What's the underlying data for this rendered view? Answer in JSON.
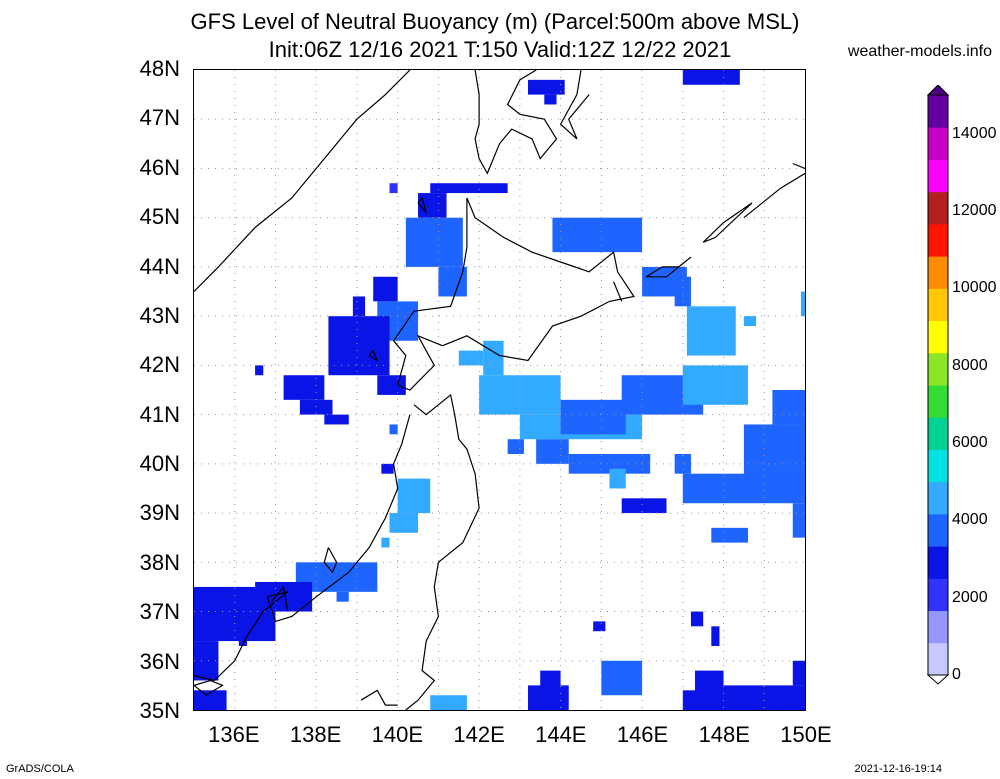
{
  "title_line1": "GFS Level of Neutral Buoyancy (m) (Parcel:500m above MSL)",
  "title_line2": "Init:06Z 12/16 2021 T:150 Valid:12Z 12/22 2021",
  "credit": "weather-models.info",
  "footer_left": "GrADS/COLA",
  "footer_right": "2021-12-16-19:14",
  "map": {
    "lon_range": [
      135,
      150
    ],
    "lat_range": [
      35,
      48
    ],
    "lat_labels": [
      "48N",
      "47N",
      "46N",
      "45N",
      "44N",
      "43N",
      "42N",
      "41N",
      "40N",
      "39N",
      "38N",
      "37N",
      "36N",
      "35N"
    ],
    "lon_labels": [
      "136E",
      "138E",
      "140E",
      "142E",
      "144E",
      "146E",
      "148E",
      "150E"
    ],
    "lon_ticks": [
      136,
      138,
      140,
      142,
      144,
      146,
      148,
      150
    ]
  },
  "colorbar": {
    "labels": [
      "14000",
      "12000",
      "10000",
      "8000",
      "6000",
      "4000",
      "2000",
      "0"
    ],
    "values": [
      14000,
      12000,
      10000,
      8000,
      6000,
      4000,
      2000,
      0
    ],
    "colors": [
      "#c8c8ff",
      "#9696ff",
      "#3232ff",
      "#0a14e6",
      "#1e64ff",
      "#32aaff",
      "#00e1e1",
      "#00d296",
      "#32dc32",
      "#8ce628",
      "#ffff00",
      "#ffc800",
      "#ff8c00",
      "#ff1400",
      "#b41e1e",
      "#ff00ff",
      "#c800c8",
      "#6400a0"
    ],
    "top_color": "#4b0082",
    "bottom_color": "#ffffff"
  },
  "cells": [
    {
      "lon": 143.2,
      "lat": 47.8,
      "lon2": 144.1,
      "lat2": 47.5,
      "c": "#0a14e6"
    },
    {
      "lon": 143.6,
      "lat": 47.5,
      "lon2": 143.9,
      "lat2": 47.3,
      "c": "#0a14e6"
    },
    {
      "lon": 147.0,
      "lat": 48.0,
      "lon2": 148.4,
      "lat2": 47.7,
      "c": "#0a14e6"
    },
    {
      "lon": 140.8,
      "lat": 45.7,
      "lon2": 142.7,
      "lat2": 45.5,
      "c": "#0a14e6"
    },
    {
      "lon": 139.8,
      "lat": 45.7,
      "lon2": 140.0,
      "lat2": 45.5,
      "c": "#3232ff"
    },
    {
      "lon": 140.2,
      "lat": 45.0,
      "lon2": 141.6,
      "lat2": 44.0,
      "c": "#1e64ff"
    },
    {
      "lon": 141.0,
      "lat": 44.0,
      "lon2": 141.7,
      "lat2": 43.4,
      "c": "#1e64ff"
    },
    {
      "lon": 140.5,
      "lat": 45.5,
      "lon2": 141.2,
      "lat2": 45.0,
      "c": "#0a14e6"
    },
    {
      "lon": 143.8,
      "lat": 45.0,
      "lon2": 146.0,
      "lat2": 44.3,
      "c": "#1e64ff"
    },
    {
      "lon": 146.0,
      "lat": 44.0,
      "lon2": 147.1,
      "lat2": 43.4,
      "c": "#1e64ff"
    },
    {
      "lon": 147.1,
      "lat": 43.2,
      "lon2": 148.3,
      "lat2": 42.2,
      "c": "#32aaff"
    },
    {
      "lon": 146.8,
      "lat": 43.8,
      "lon2": 147.2,
      "lat2": 43.2,
      "c": "#1e64ff"
    },
    {
      "lon": 149.9,
      "lat": 43.5,
      "lon2": 150.0,
      "lat2": 43.0,
      "c": "#32aaff"
    },
    {
      "lon": 148.5,
      "lat": 43.0,
      "lon2": 148.8,
      "lat2": 42.8,
      "c": "#32aaff"
    },
    {
      "lon": 139.4,
      "lat": 43.8,
      "lon2": 140.0,
      "lat2": 43.3,
      "c": "#0a14e6"
    },
    {
      "lon": 139.5,
      "lat": 43.3,
      "lon2": 140.5,
      "lat2": 42.5,
      "c": "#1e64ff"
    },
    {
      "lon": 138.3,
      "lat": 43.0,
      "lon2": 139.8,
      "lat2": 41.8,
      "c": "#0a14e6"
    },
    {
      "lon": 138.9,
      "lat": 43.4,
      "lon2": 139.2,
      "lat2": 43.0,
      "c": "#0a14e6"
    },
    {
      "lon": 139.5,
      "lat": 41.8,
      "lon2": 140.2,
      "lat2": 41.4,
      "c": "#0a14e6"
    },
    {
      "lon": 137.2,
      "lat": 41.8,
      "lon2": 138.2,
      "lat2": 41.3,
      "c": "#0a14e6"
    },
    {
      "lon": 137.6,
      "lat": 41.3,
      "lon2": 138.4,
      "lat2": 41.0,
      "c": "#0a14e6"
    },
    {
      "lon": 138.2,
      "lat": 41.0,
      "lon2": 138.8,
      "lat2": 40.8,
      "c": "#0a14e6"
    },
    {
      "lon": 136.5,
      "lat": 42.0,
      "lon2": 136.7,
      "lat2": 41.8,
      "c": "#0a14e6"
    },
    {
      "lon": 139.8,
      "lat": 40.8,
      "lon2": 140.0,
      "lat2": 40.6,
      "c": "#1e64ff"
    },
    {
      "lon": 139.6,
      "lat": 40.0,
      "lon2": 139.9,
      "lat2": 39.8,
      "c": "#0a14e6"
    },
    {
      "lon": 140.0,
      "lat": 39.7,
      "lon2": 140.8,
      "lat2": 39.0,
      "c": "#32aaff"
    },
    {
      "lon": 139.8,
      "lat": 39.0,
      "lon2": 140.5,
      "lat2": 38.6,
      "c": "#32aaff"
    },
    {
      "lon": 139.6,
      "lat": 38.5,
      "lon2": 139.8,
      "lat2": 38.3,
      "c": "#32aaff"
    },
    {
      "lon": 141.5,
      "lat": 42.3,
      "lon2": 142.1,
      "lat2": 42.0,
      "c": "#32aaff"
    },
    {
      "lon": 142.1,
      "lat": 42.5,
      "lon2": 142.6,
      "lat2": 41.8,
      "c": "#32aaff"
    },
    {
      "lon": 142.0,
      "lat": 41.8,
      "lon2": 144.0,
      "lat2": 41.0,
      "c": "#32aaff"
    },
    {
      "lon": 143.0,
      "lat": 41.0,
      "lon2": 146.0,
      "lat2": 40.5,
      "c": "#32aaff"
    },
    {
      "lon": 144.0,
      "lat": 41.3,
      "lon2": 145.6,
      "lat2": 40.6,
      "c": "#1e64ff"
    },
    {
      "lon": 145.5,
      "lat": 41.8,
      "lon2": 147.5,
      "lat2": 41.0,
      "c": "#1e64ff"
    },
    {
      "lon": 147.0,
      "lat": 42.0,
      "lon2": 148.6,
      "lat2": 41.2,
      "c": "#32aaff"
    },
    {
      "lon": 143.4,
      "lat": 40.5,
      "lon2": 144.2,
      "lat2": 40.0,
      "c": "#1e64ff"
    },
    {
      "lon": 144.2,
      "lat": 40.2,
      "lon2": 146.2,
      "lat2": 39.8,
      "c": "#1e64ff"
    },
    {
      "lon": 142.7,
      "lat": 40.5,
      "lon2": 143.1,
      "lat2": 40.2,
      "c": "#1e64ff"
    },
    {
      "lon": 145.2,
      "lat": 39.9,
      "lon2": 145.6,
      "lat2": 39.5,
      "c": "#32aaff"
    },
    {
      "lon": 146.8,
      "lat": 40.2,
      "lon2": 147.2,
      "lat2": 39.8,
      "c": "#1e64ff"
    },
    {
      "lon": 148.5,
      "lat": 40.8,
      "lon2": 150.0,
      "lat2": 39.5,
      "c": "#1e64ff"
    },
    {
      "lon": 149.2,
      "lat": 41.5,
      "lon2": 150.0,
      "lat2": 40.8,
      "c": "#1e64ff"
    },
    {
      "lon": 147.0,
      "lat": 39.8,
      "lon2": 150.0,
      "lat2": 39.2,
      "c": "#1e64ff"
    },
    {
      "lon": 149.7,
      "lat": 39.2,
      "lon2": 150.0,
      "lat2": 38.5,
      "c": "#1e64ff"
    },
    {
      "lon": 145.5,
      "lat": 39.3,
      "lon2": 146.6,
      "lat2": 39.0,
      "c": "#0a14e6"
    },
    {
      "lon": 147.7,
      "lat": 38.7,
      "lon2": 148.6,
      "lat2": 38.4,
      "c": "#1e64ff"
    },
    {
      "lon": 137.5,
      "lat": 38.0,
      "lon2": 139.5,
      "lat2": 37.4,
      "c": "#1e64ff"
    },
    {
      "lon": 135.0,
      "lat": 37.5,
      "lon2": 137.0,
      "lat2": 36.4,
      "c": "#0a14e6"
    },
    {
      "lon": 136.5,
      "lat": 37.6,
      "lon2": 137.9,
      "lat2": 37.0,
      "c": "#0a14e6"
    },
    {
      "lon": 138.5,
      "lat": 37.4,
      "lon2": 138.8,
      "lat2": 37.2,
      "c": "#1e64ff"
    },
    {
      "lon": 135.0,
      "lat": 36.4,
      "lon2": 135.6,
      "lat2": 35.6,
      "c": "#0a14e6"
    },
    {
      "lon": 136.1,
      "lat": 36.6,
      "lon2": 136.3,
      "lat2": 36.3,
      "c": "#0a14e6"
    },
    {
      "lon": 135.0,
      "lat": 35.4,
      "lon2": 135.8,
      "lat2": 35.0,
      "c": "#0a14e6"
    },
    {
      "lon": 147.2,
      "lat": 37.0,
      "lon2": 147.5,
      "lat2": 36.7,
      "c": "#0a14e6"
    },
    {
      "lon": 147.7,
      "lat": 36.7,
      "lon2": 147.9,
      "lat2": 36.3,
      "c": "#0a14e6"
    },
    {
      "lon": 144.8,
      "lat": 36.8,
      "lon2": 145.1,
      "lat2": 36.6,
      "c": "#0a14e6"
    },
    {
      "lon": 145.0,
      "lat": 36.0,
      "lon2": 146.0,
      "lat2": 35.3,
      "c": "#1e64ff"
    },
    {
      "lon": 143.5,
      "lat": 35.8,
      "lon2": 144.0,
      "lat2": 35.3,
      "c": "#0a14e6"
    },
    {
      "lon": 143.2,
      "lat": 35.5,
      "lon2": 144.2,
      "lat2": 35.0,
      "c": "#0a14e6"
    },
    {
      "lon": 147.3,
      "lat": 35.8,
      "lon2": 148.0,
      "lat2": 35.0,
      "c": "#0a14e6"
    },
    {
      "lon": 147.0,
      "lat": 35.4,
      "lon2": 147.5,
      "lat2": 35.0,
      "c": "#0a14e6"
    },
    {
      "lon": 148.0,
      "lat": 35.5,
      "lon2": 150.0,
      "lat2": 35.0,
      "c": "#0a14e6"
    },
    {
      "lon": 149.7,
      "lat": 36.0,
      "lon2": 150.0,
      "lat2": 35.5,
      "c": "#0a14e6"
    },
    {
      "lon": 140.8,
      "lat": 35.3,
      "lon2": 141.7,
      "lat2": 35.0,
      "c": "#32aaff"
    }
  ],
  "coast": [
    [
      [
        135.0,
        43.5
      ],
      [
        135.6,
        44.0
      ],
      [
        136.5,
        44.8
      ],
      [
        137.4,
        45.4
      ],
      [
        138.3,
        46.3
      ],
      [
        139.0,
        47.0
      ],
      [
        139.7,
        47.5
      ],
      [
        140.3,
        48.0
      ]
    ],
    [
      [
        141.9,
        48.0
      ],
      [
        142.0,
        47.5
      ],
      [
        142.0,
        46.9
      ],
      [
        141.9,
        46.6
      ],
      [
        142.0,
        46.2
      ],
      [
        142.2,
        45.9
      ],
      [
        142.5,
        46.5
      ],
      [
        142.8,
        46.8
      ],
      [
        143.3,
        46.6
      ],
      [
        143.5,
        46.2
      ],
      [
        143.9,
        46.6
      ],
      [
        143.6,
        47.0
      ],
      [
        143.0,
        47.1
      ],
      [
        142.7,
        47.3
      ],
      [
        143.0,
        47.8
      ],
      [
        143.4,
        48.0
      ]
    ],
    [
      [
        144.5,
        48.0
      ],
      [
        144.4,
        47.5
      ],
      [
        144.0,
        46.9
      ],
      [
        144.4,
        46.6
      ],
      [
        144.2,
        47.0
      ],
      [
        144.7,
        47.5
      ]
    ],
    [
      [
        141.7,
        45.4
      ],
      [
        141.9,
        45.0
      ],
      [
        142.6,
        44.6
      ],
      [
        143.3,
        44.3
      ],
      [
        144.0,
        44.1
      ],
      [
        144.7,
        43.9
      ],
      [
        145.3,
        44.3
      ],
      [
        145.4,
        43.9
      ],
      [
        145.8,
        43.4
      ],
      [
        145.2,
        43.3
      ],
      [
        144.5,
        43.0
      ],
      [
        143.8,
        42.8
      ],
      [
        143.2,
        42.1
      ],
      [
        142.5,
        42.2
      ],
      [
        141.7,
        42.6
      ],
      [
        141.1,
        42.4
      ],
      [
        140.5,
        42.6
      ],
      [
        140.9,
        42.0
      ],
      [
        140.3,
        41.5
      ],
      [
        140.0,
        41.6
      ],
      [
        140.2,
        42.2
      ],
      [
        139.9,
        42.5
      ],
      [
        140.4,
        43.1
      ],
      [
        141.3,
        43.2
      ],
      [
        141.6,
        43.9
      ],
      [
        141.7,
        44.4
      ],
      [
        141.7,
        45.4
      ]
    ],
    [
      [
        140.4,
        41.2
      ],
      [
        140.7,
        41.0
      ],
      [
        141.0,
        41.2
      ],
      [
        141.3,
        41.4
      ],
      [
        141.4,
        41.0
      ],
      [
        141.5,
        40.5
      ],
      [
        141.7,
        40.3
      ],
      [
        141.9,
        39.8
      ],
      [
        142.0,
        39.1
      ],
      [
        141.6,
        38.4
      ],
      [
        141.0,
        38.0
      ],
      [
        140.9,
        37.5
      ],
      [
        141.0,
        36.9
      ],
      [
        140.7,
        36.4
      ],
      [
        140.6,
        35.8
      ],
      [
        140.9,
        35.6
      ],
      [
        140.5,
        35.2
      ],
      [
        140.2,
        35.0
      ]
    ],
    [
      [
        140.3,
        41.0
      ],
      [
        140.1,
        40.4
      ],
      [
        139.9,
        40.0
      ],
      [
        140.0,
        39.5
      ],
      [
        139.7,
        38.9
      ],
      [
        139.3,
        38.3
      ],
      [
        138.8,
        37.8
      ],
      [
        138.0,
        37.3
      ],
      [
        137.4,
        36.9
      ],
      [
        137.0,
        36.8
      ],
      [
        136.8,
        37.3
      ],
      [
        137.3,
        37.4
      ],
      [
        136.7,
        37.0
      ],
      [
        136.3,
        36.5
      ],
      [
        136.0,
        36.0
      ],
      [
        135.5,
        35.6
      ],
      [
        135.0,
        35.7
      ]
    ],
    [
      [
        138.3,
        38.3
      ],
      [
        138.5,
        38.0
      ],
      [
        138.4,
        37.8
      ],
      [
        138.2,
        38.0
      ],
      [
        138.3,
        38.3
      ]
    ],
    [
      [
        137.3,
        37.0
      ],
      [
        137.2,
        37.5
      ],
      [
        136.9,
        37.2
      ]
    ],
    [
      [
        135.0,
        35.5
      ],
      [
        135.4,
        35.6
      ],
      [
        135.7,
        35.5
      ],
      [
        135.3,
        35.3
      ],
      [
        135.0,
        35.5
      ]
    ],
    [
      [
        139.1,
        35.2
      ],
      [
        139.5,
        35.4
      ],
      [
        139.7,
        35.1
      ],
      [
        140.0,
        35.1
      ]
    ],
    [
      [
        140.5,
        45.3
      ],
      [
        140.7,
        45.1
      ],
      [
        140.6,
        45.4
      ],
      [
        140.5,
        45.3
      ]
    ],
    [
      [
        139.3,
        42.2
      ],
      [
        139.5,
        42.1
      ],
      [
        139.4,
        42.3
      ],
      [
        139.3,
        42.2
      ]
    ],
    [
      [
        146.1,
        43.8
      ],
      [
        146.5,
        44.0
      ],
      [
        146.9,
        44.0
      ],
      [
        147.2,
        44.2
      ],
      [
        146.6,
        43.8
      ],
      [
        146.1,
        43.8
      ]
    ],
    [
      [
        147.5,
        44.5
      ],
      [
        148.0,
        44.9
      ],
      [
        148.7,
        45.3
      ],
      [
        147.8,
        44.6
      ],
      [
        147.5,
        44.5
      ]
    ],
    [
      [
        148.5,
        45.0
      ],
      [
        149.4,
        45.6
      ],
      [
        150.0,
        45.9
      ]
    ],
    [
      [
        149.7,
        46.1
      ],
      [
        150.0,
        46.0
      ]
    ],
    [
      [
        145.3,
        43.7
      ],
      [
        145.5,
        43.3
      ]
    ]
  ]
}
